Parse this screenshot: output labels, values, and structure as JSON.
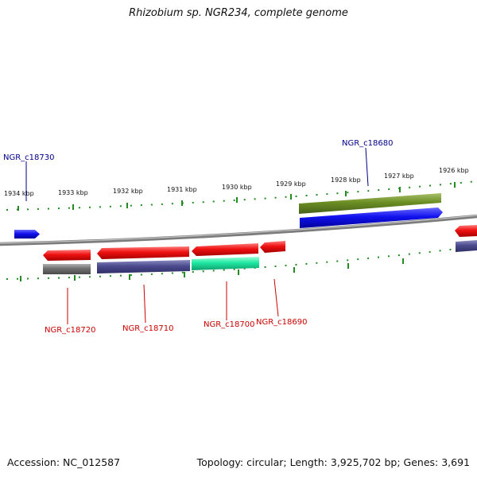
{
  "header": {
    "title": "Rhizobium sp. NGR234, complete genome"
  },
  "footer": {
    "accession": "Accession: NC_012587",
    "summary": "Topology: circular; Length: 3,925,702 bp; Genes: 3,691"
  },
  "scale": {
    "unit_labels": [
      "1934 kbp",
      "1933 kbp",
      "1932 kbp",
      "1931 kbp",
      "1930 kbp",
      "1929 kbp",
      "1928 kbp",
      "1927 kbp",
      "1926 kbp"
    ]
  },
  "genes": {
    "forward": [
      "NGR_c18730",
      "NGR_c18680"
    ],
    "reverse": [
      "NGR_c18720",
      "NGR_c18710",
      "NGR_c18700",
      "NGR_c18690"
    ]
  },
  "colors": {
    "forward_label": "#00008b",
    "reverse_label": "#cc0000",
    "gene_red": "#ee1111",
    "gene_blue": "#1111ee",
    "olive_feature": "#6b8e23",
    "purple_feature": "#4b4b8f",
    "gray_feature": "#707070",
    "teal_feature": "#1ee8a0",
    "tick_green": "#228b22",
    "backbone": "#888888"
  }
}
